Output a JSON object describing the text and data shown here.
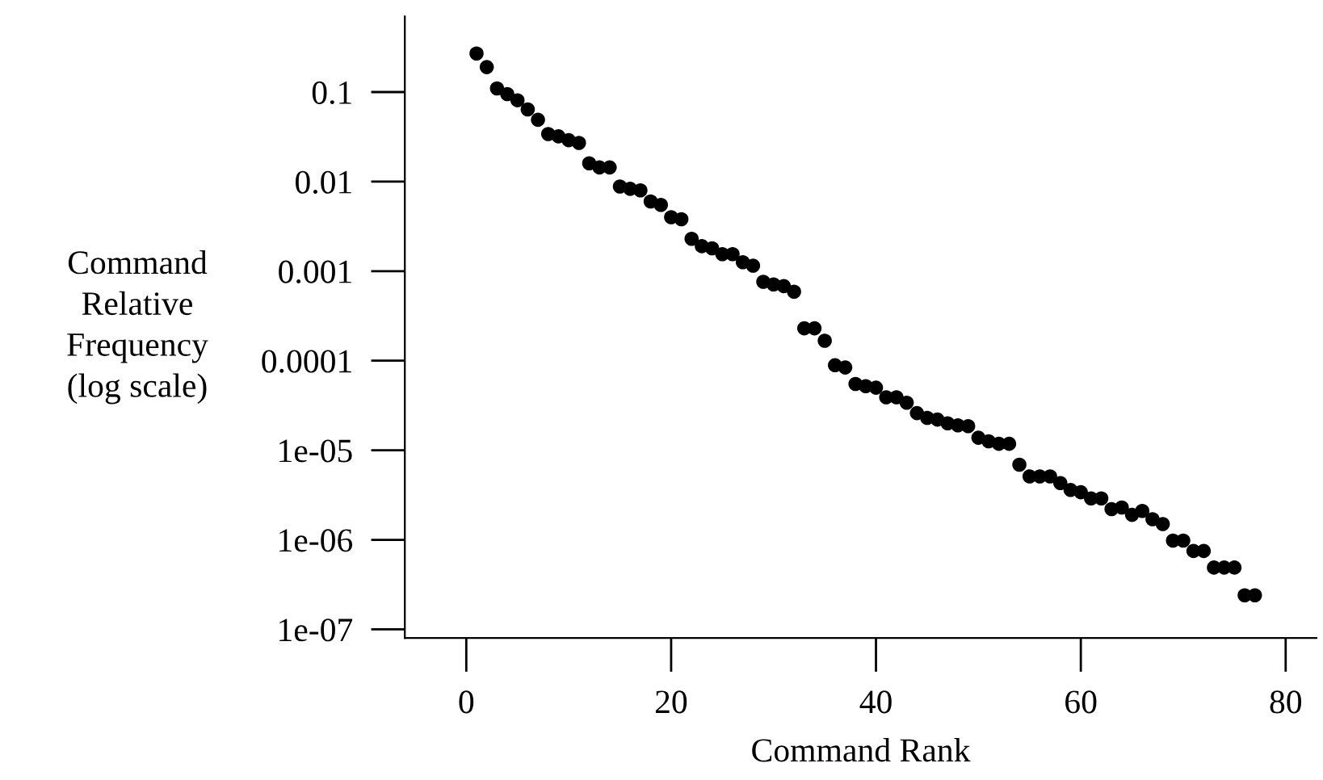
{
  "chart_data": {
    "type": "scatter",
    "xlabel": "Command Rank",
    "ylabel": "Command\nRelative\nFrequency\n(log scale)",
    "log": "y",
    "grid": false,
    "legend": false,
    "marker": "circle",
    "x": [
      1,
      2,
      3,
      4,
      5,
      6,
      7,
      8,
      9,
      10,
      11,
      12,
      13,
      14,
      15,
      16,
      17,
      18,
      19,
      20,
      21,
      22,
      23,
      24,
      25,
      26,
      27,
      28,
      29,
      30,
      31,
      32,
      33,
      34,
      35,
      36,
      37,
      38,
      39,
      40,
      41,
      42,
      43,
      44,
      45,
      46,
      47,
      48,
      49,
      50,
      51,
      52,
      53,
      54,
      55,
      56,
      57,
      58,
      59,
      60,
      61,
      62,
      63,
      64,
      65,
      66,
      67,
      68,
      69,
      70,
      71,
      72,
      73,
      74,
      75,
      76,
      77
    ],
    "series": [
      {
        "color": "#000000",
        "values": [
          0.27,
          0.19,
          0.11,
          0.095,
          0.081,
          0.064,
          0.049,
          0.034,
          0.032,
          0.029,
          0.027,
          0.016,
          0.0144,
          0.0144,
          0.0088,
          0.0083,
          0.008,
          0.006,
          0.0055,
          0.004,
          0.0038,
          0.0023,
          0.0019,
          0.0018,
          0.00155,
          0.00155,
          0.00126,
          0.00115,
          0.00076,
          0.00071,
          0.00068,
          0.00059,
          0.00023,
          0.00023,
          0.000167,
          8.9e-05,
          8.4e-05,
          5.5e-05,
          5.2e-05,
          5e-05,
          3.9e-05,
          3.9e-05,
          3.4e-05,
          2.6e-05,
          2.3e-05,
          2.2e-05,
          2e-05,
          1.9e-05,
          1.86e-05,
          1.38e-05,
          1.26e-05,
          1.18e-05,
          1.18e-05,
          6.9e-06,
          5.1e-06,
          5.1e-06,
          5.1e-06,
          4.3e-06,
          3.6e-06,
          3.4e-06,
          2.9e-06,
          2.9e-06,
          2.2e-06,
          2.3e-06,
          1.9e-06,
          2.1e-06,
          1.7e-06,
          1.5e-06,
          9.8e-07,
          9.8e-07,
          7.5e-07,
          7.5e-07,
          4.9e-07,
          4.9e-07,
          4.9e-07,
          2.4e-07,
          2.4e-07
        ]
      }
    ],
    "xlim": [
      -6,
      83
    ],
    "xticks": [
      0,
      20,
      40,
      60,
      80
    ],
    "ylim": [
      8e-08,
      0.7
    ],
    "yticks": [
      {
        "value": 0.1,
        "label": "0.1"
      },
      {
        "value": 0.01,
        "label": "0.01"
      },
      {
        "value": 0.001,
        "label": "0.001"
      },
      {
        "value": 0.0001,
        "label": "0.0001"
      },
      {
        "value": 1e-05,
        "label": "1e-05"
      },
      {
        "value": 1e-06,
        "label": "1e-06"
      },
      {
        "value": 1e-07,
        "label": "1e-07"
      }
    ]
  }
}
